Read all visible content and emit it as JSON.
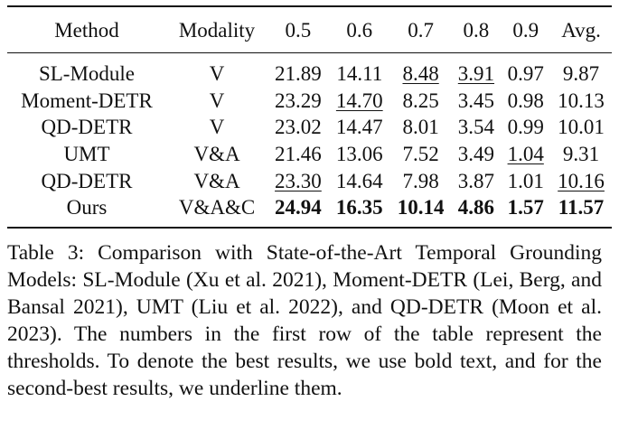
{
  "table": {
    "headers": [
      "Method",
      "Modality",
      "0.5",
      "0.6",
      "0.7",
      "0.8",
      "0.9",
      "Avg."
    ],
    "rows": [
      {
        "method": "SL-Module",
        "modality": "V",
        "cells": [
          {
            "v": "21.89",
            "s": ""
          },
          {
            "v": "14.11",
            "s": ""
          },
          {
            "v": "8.48",
            "s": "ul"
          },
          {
            "v": "3.91",
            "s": "ul"
          },
          {
            "v": "0.97",
            "s": ""
          },
          {
            "v": "9.87",
            "s": ""
          }
        ]
      },
      {
        "method": "Moment-DETR",
        "modality": "V",
        "cells": [
          {
            "v": "23.29",
            "s": ""
          },
          {
            "v": "14.70",
            "s": "ul"
          },
          {
            "v": "8.25",
            "s": ""
          },
          {
            "v": "3.45",
            "s": ""
          },
          {
            "v": "0.98",
            "s": ""
          },
          {
            "v": "10.13",
            "s": ""
          }
        ]
      },
      {
        "method": "QD-DETR",
        "modality": "V",
        "cells": [
          {
            "v": "23.02",
            "s": ""
          },
          {
            "v": "14.47",
            "s": ""
          },
          {
            "v": "8.01",
            "s": ""
          },
          {
            "v": "3.54",
            "s": ""
          },
          {
            "v": "0.99",
            "s": ""
          },
          {
            "v": "10.01",
            "s": ""
          }
        ]
      },
      {
        "method": "UMT",
        "modality": "V&A",
        "cells": [
          {
            "v": "21.46",
            "s": ""
          },
          {
            "v": "13.06",
            "s": ""
          },
          {
            "v": "7.52",
            "s": ""
          },
          {
            "v": "3.49",
            "s": ""
          },
          {
            "v": "1.04",
            "s": "ul"
          },
          {
            "v": "9.31",
            "s": ""
          }
        ]
      },
      {
        "method": "QD-DETR",
        "modality": "V&A",
        "cells": [
          {
            "v": "23.30",
            "s": "ul"
          },
          {
            "v": "14.64",
            "s": ""
          },
          {
            "v": "7.98",
            "s": ""
          },
          {
            "v": "3.87",
            "s": ""
          },
          {
            "v": "1.01",
            "s": ""
          },
          {
            "v": "10.16",
            "s": "ul"
          }
        ]
      },
      {
        "method": "Ours",
        "modality": "V&A&C",
        "cells": [
          {
            "v": "24.94",
            "s": "bold"
          },
          {
            "v": "16.35",
            "s": "bold"
          },
          {
            "v": "10.14",
            "s": "bold"
          },
          {
            "v": "4.86",
            "s": "bold"
          },
          {
            "v": "1.57",
            "s": "bold"
          },
          {
            "v": "11.57",
            "s": "bold"
          }
        ]
      }
    ]
  },
  "caption": "Table 3: Comparison with State-of-the-Art Temporal Grounding Models: SL-Module (Xu et al. 2021), Moment-DETR (Lei, Berg, and Bansal 2021), UMT (Liu et al. 2022), and QD-DETR (Moon et al. 2023). The numbers in the first row of the table represent the thresholds. To denote the best results, we use bold text, and for the second-best results, we underline them."
}
